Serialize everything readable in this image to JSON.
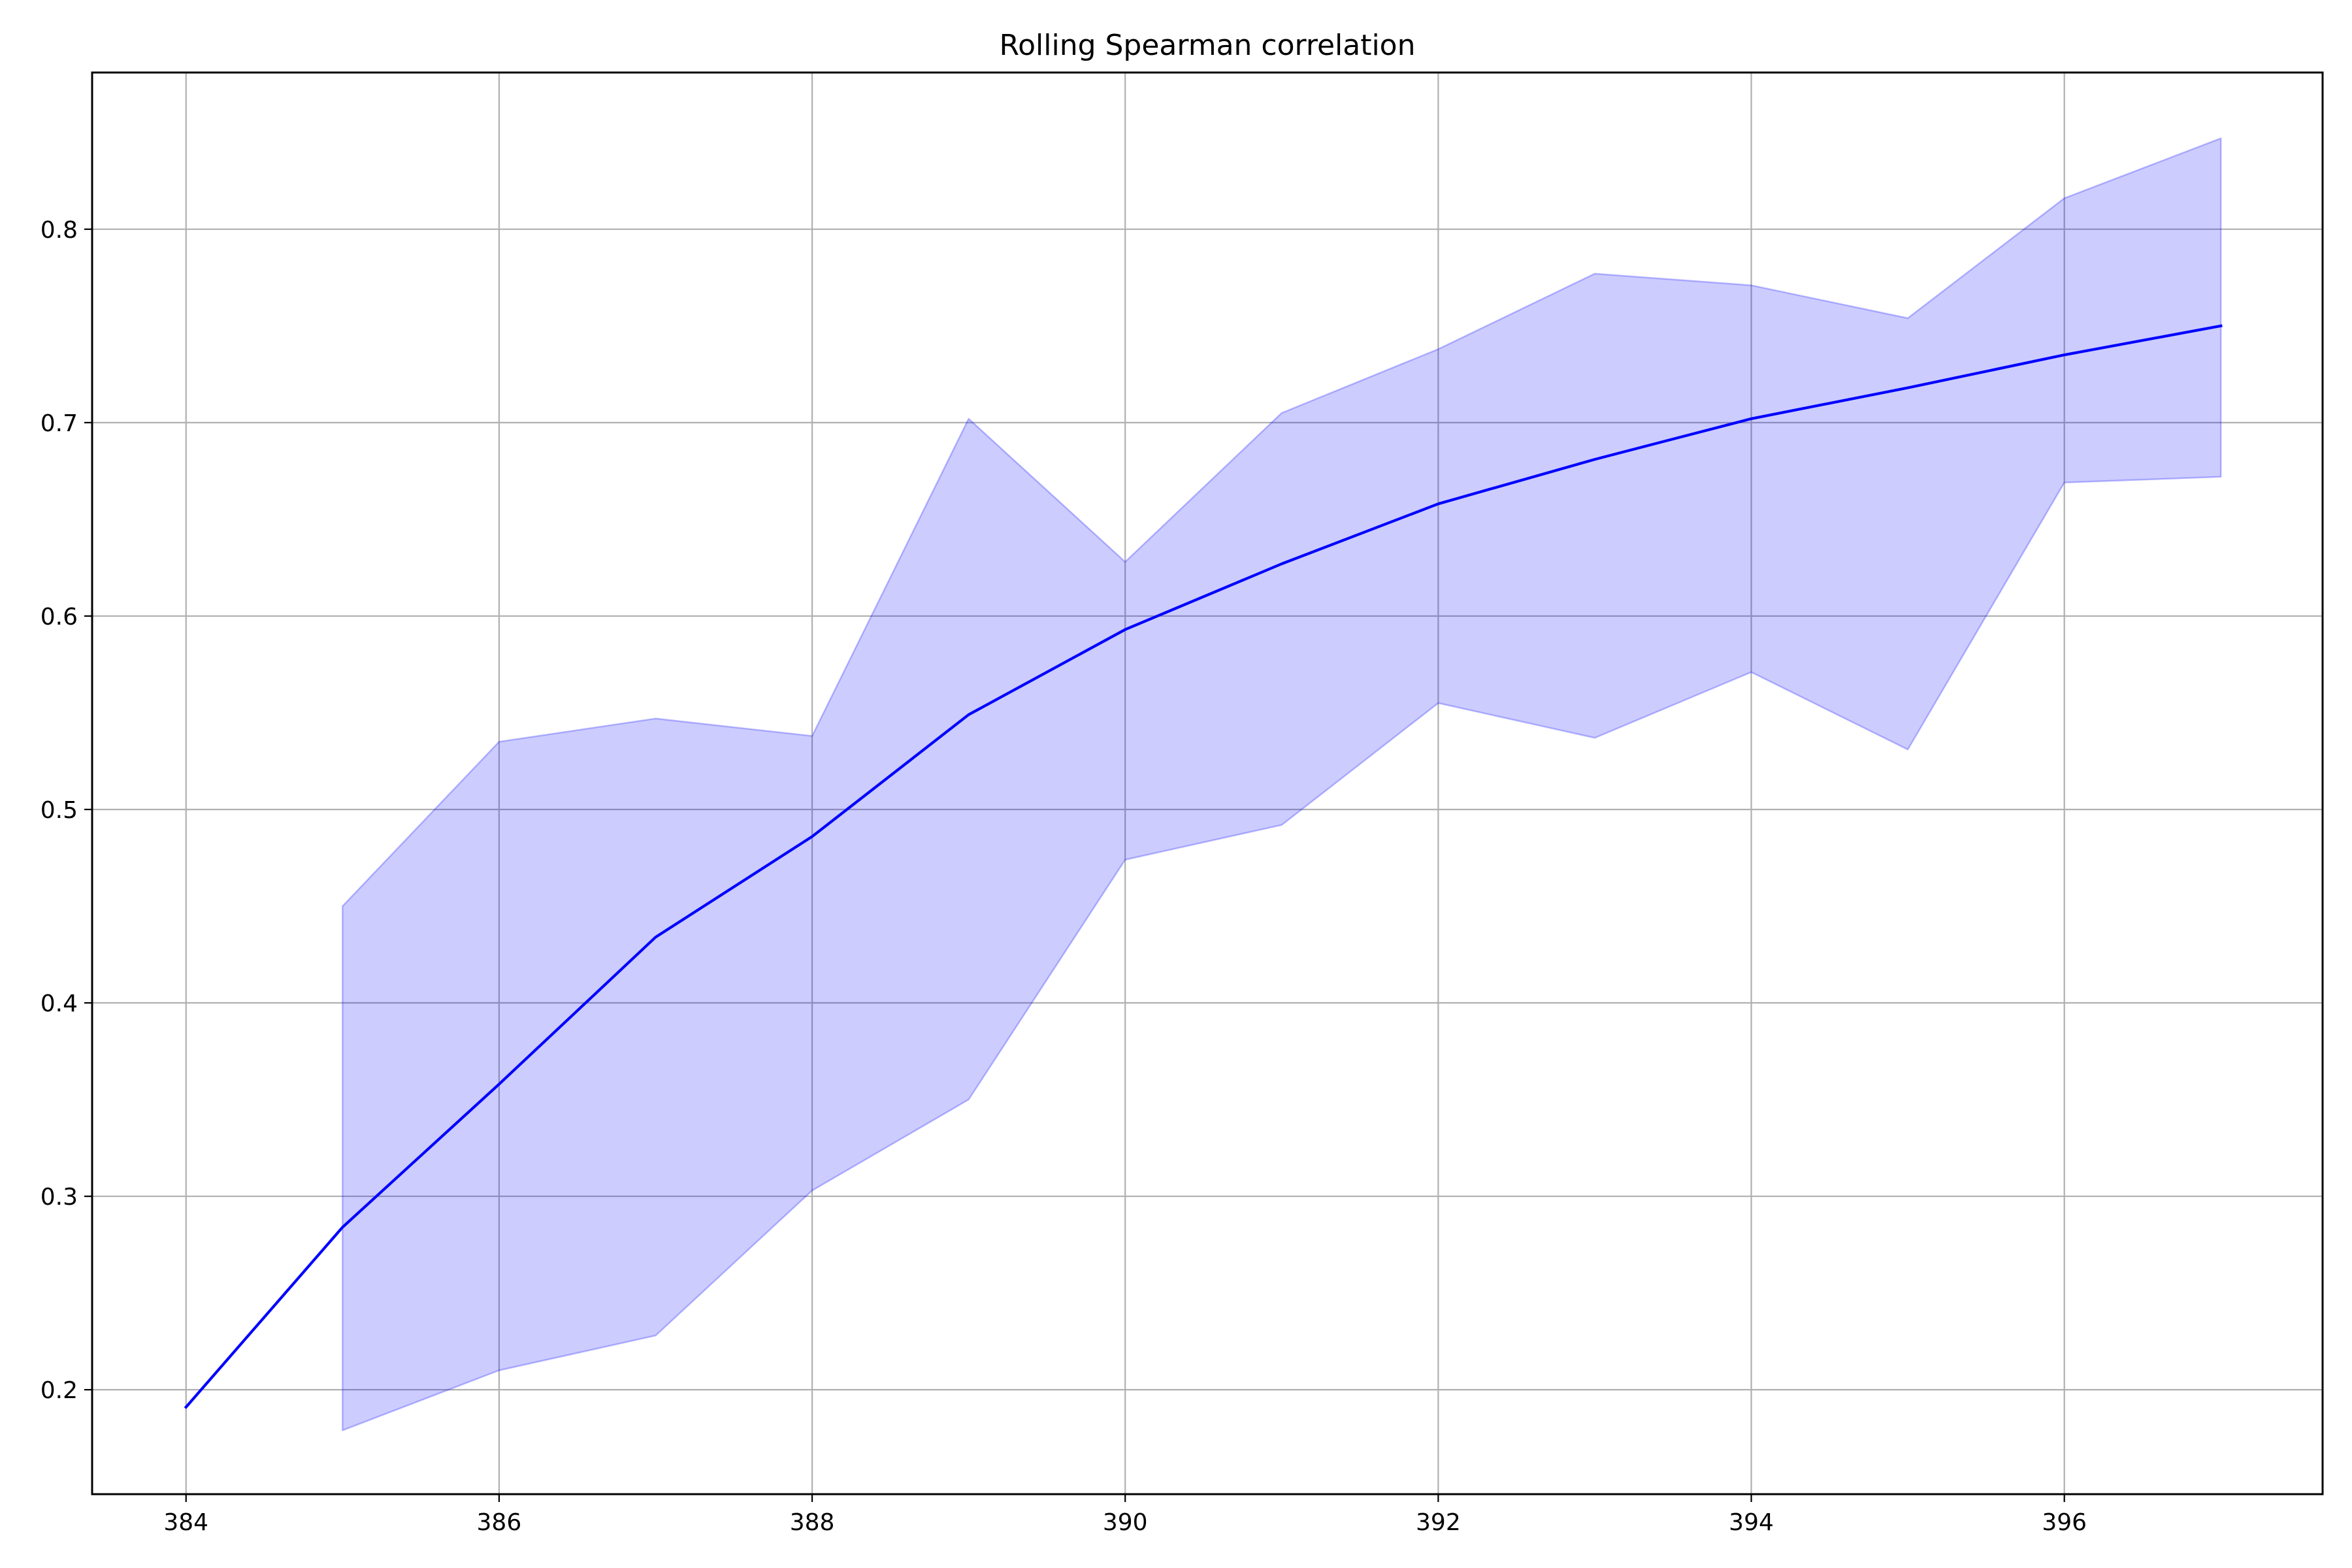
{
  "chart_data": {
    "type": "line",
    "title": "Rolling Spearman correlation",
    "xlabel": "",
    "ylabel": "",
    "xlim": [
      383.4,
      397.65
    ],
    "ylim": [
      0.146,
      0.881
    ],
    "x_ticks": [
      384,
      386,
      388,
      390,
      392,
      394,
      396
    ],
    "y_ticks": [
      0.2,
      0.3,
      0.4,
      0.5,
      0.6,
      0.7,
      0.8
    ],
    "grid": true,
    "legend": "none",
    "series": [
      {
        "x": [
          384,
          385,
          386,
          387,
          388,
          389,
          390,
          391,
          392,
          393,
          394,
          395,
          396,
          397
        ],
        "values": [
          0.191,
          0.284,
          0.358,
          0.434,
          0.486,
          0.549,
          0.593,
          0.627,
          0.658,
          0.681,
          0.702,
          0.718,
          0.735,
          0.75
        ],
        "color": "#0000ff"
      }
    ],
    "band": {
      "x": [
        385,
        386,
        387,
        388,
        389,
        390,
        391,
        392,
        393,
        394,
        395,
        396,
        397
      ],
      "lower": [
        0.179,
        0.21,
        0.228,
        0.303,
        0.35,
        0.474,
        0.492,
        0.555,
        0.537,
        0.571,
        0.531,
        0.669,
        0.672
      ],
      "upper": [
        0.45,
        0.535,
        0.547,
        0.538,
        0.702,
        0.628,
        0.705,
        0.738,
        0.777,
        0.771,
        0.754,
        0.816,
        0.847
      ],
      "color": "#0000ff",
      "opacity": 0.2
    }
  }
}
